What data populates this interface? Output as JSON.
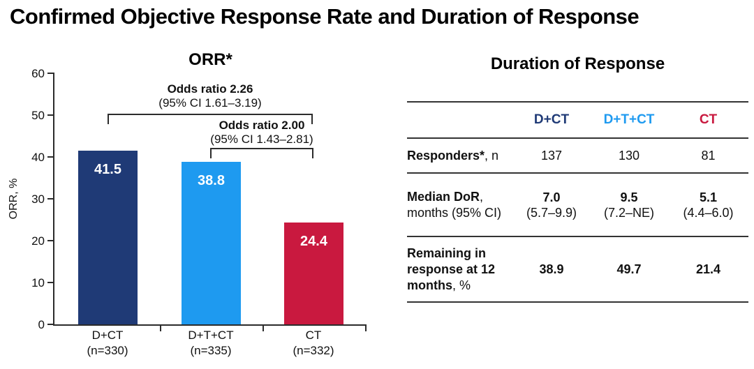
{
  "page": {
    "title": "Confirmed Objective Response Rate and Duration of Response"
  },
  "chart_data": {
    "type": "bar",
    "title": "ORR*",
    "xlabel": "",
    "ylabel": "ORR, %",
    "ylim": [
      0,
      60
    ],
    "yticks": [
      0,
      10,
      20,
      30,
      40,
      50,
      60
    ],
    "grid": false,
    "categories": [
      "D+CT",
      "D+T+CT",
      "CT"
    ],
    "category_sublabels": [
      "(n=330)",
      "(n=335)",
      "(n=332)"
    ],
    "values": [
      41.5,
      38.8,
      24.4
    ],
    "bar_colors": [
      "#1F3A76",
      "#1E9AF0",
      "#C9193F"
    ],
    "annotations": [
      {
        "line1": "Odds ratio 2.26",
        "line2": "(95% CI 1.61–3.19)",
        "spans": "D+CT vs CT"
      },
      {
        "line1": "Odds ratio 2.00",
        "line2": "(95% CI 1.43–2.81)",
        "spans": "D+T+CT vs CT"
      }
    ]
  },
  "table": {
    "title": "Duration of Response",
    "columns": [
      {
        "label": "D+CT",
        "color": "#1F3A76"
      },
      {
        "label": "D+T+CT",
        "color": "#1E9AF0"
      },
      {
        "label": "CT",
        "color": "#C9193F"
      }
    ],
    "rows": [
      {
        "label_bold": "Responders*",
        "label_rest": ", n",
        "values": [
          "137",
          "130",
          "81"
        ]
      },
      {
        "label_bold": "Median DoR",
        "label_rest": ",",
        "label_line2": "months (95% CI)",
        "values": [
          "7.0",
          "9.5",
          "5.1"
        ],
        "subvalues": [
          "(5.7–9.9)",
          "(7.2–NE)",
          "(4.4–6.0)"
        ]
      },
      {
        "label_bold": "Remaining in response at 12 months",
        "label_rest": ", %",
        "values": [
          "38.9",
          "49.7",
          "21.4"
        ]
      }
    ]
  }
}
